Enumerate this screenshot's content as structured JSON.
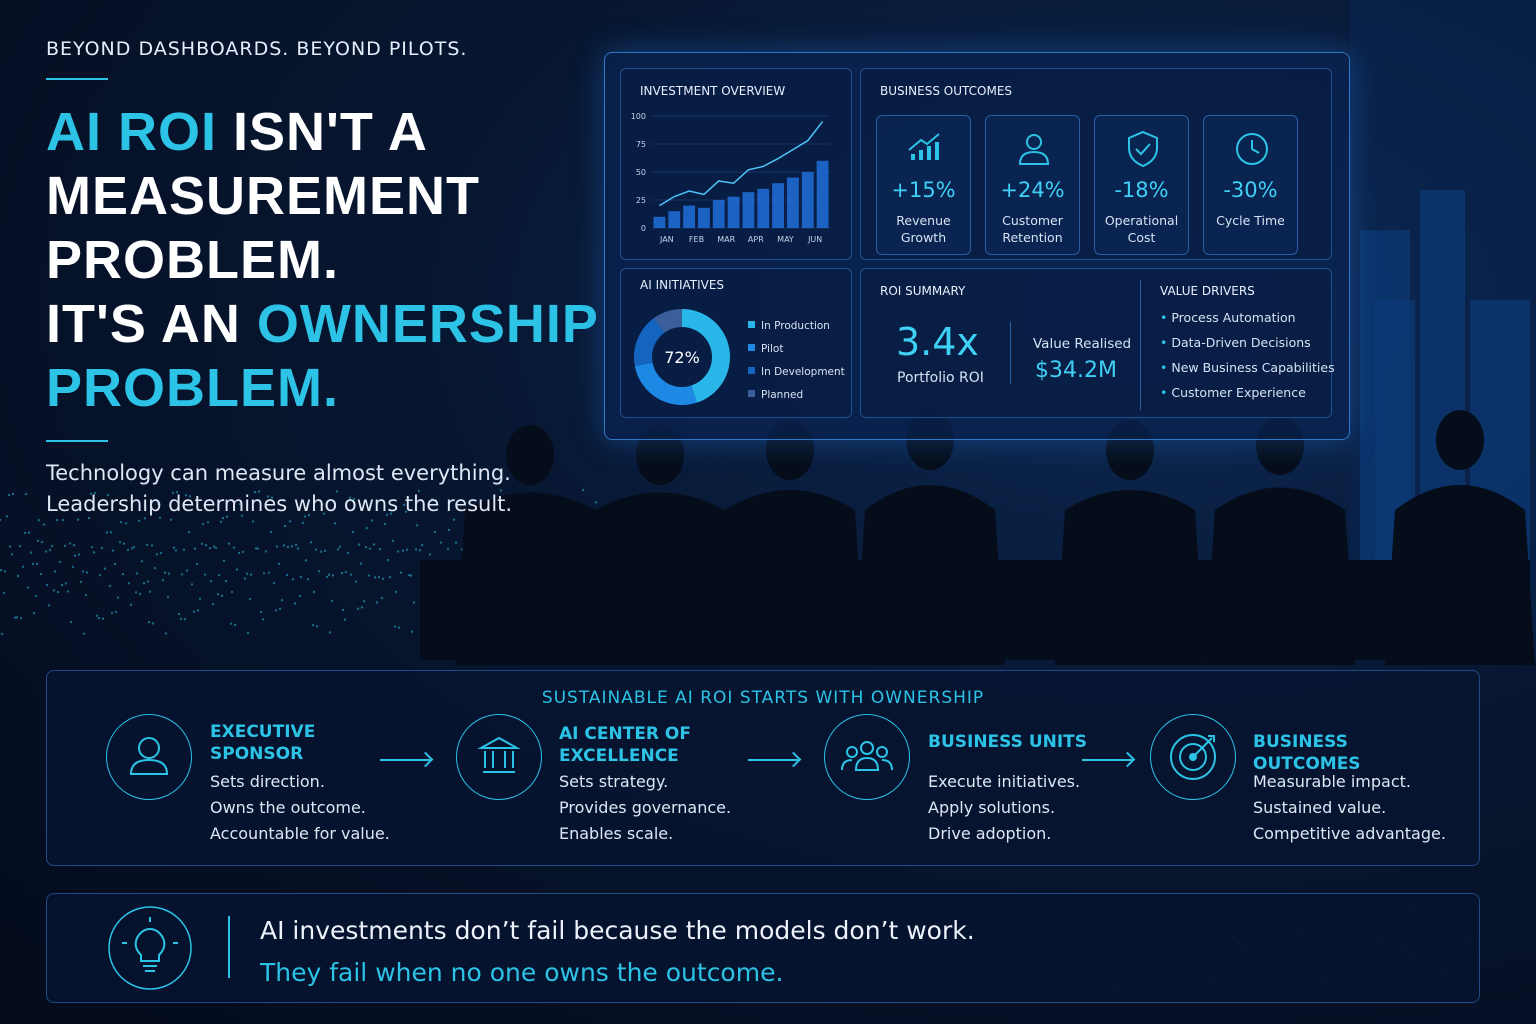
{
  "hero": {
    "kicker": "BEYOND DASHBOARDS. BEYOND PILOTS.",
    "headline": [
      "AI ROI",
      "ISN'T A MEASUREMENT PROBLEM.",
      "IT'S AN",
      "OWNERSHIP PROBLEM."
    ],
    "subtitle": [
      "Technology can measure almost everything.",
      "Leadership determines who owns the result."
    ]
  },
  "dashboard": {
    "investment": {
      "title": "INVESTMENT OVERVIEW",
      "chart": {
        "type": "bar_line",
        "categories": [
          "JAN",
          null,
          "FEB",
          null,
          "MAR",
          null,
          "APR",
          null,
          "MAY",
          null,
          "JUN",
          null
        ],
        "line": {
          "color": "#4fc3f7",
          "values": [
            20,
            28,
            33,
            30,
            42,
            40,
            52,
            55,
            62,
            70,
            78,
            95
          ]
        },
        "bars": {
          "color": "#1e6fd9",
          "values": [
            10,
            15,
            20,
            18,
            25,
            28,
            32,
            35,
            40,
            45,
            50,
            60
          ]
        },
        "ylim": [
          0,
          100
        ],
        "yticks": [
          0,
          25,
          50,
          75,
          100
        ],
        "grid": true
      }
    },
    "outcomes": {
      "title": "BUSINESS OUTCOMES",
      "items": [
        {
          "value": "+15%",
          "label": "Revenue Growth"
        },
        {
          "value": "+24%",
          "label": "Customer Retention"
        },
        {
          "value": "-18%",
          "label": "Operational Cost"
        },
        {
          "value": "-30%",
          "label": "Cycle Time"
        }
      ]
    },
    "initiatives": {
      "title": "AI INITIATIVES",
      "chart": {
        "type": "donut",
        "center_label": "72%",
        "categories": [
          "In Production",
          "Pilot",
          "In Development",
          "Planned"
        ],
        "values": [
          45,
          27,
          18,
          10
        ],
        "colors": [
          "#29b6e8",
          "#1e88e5",
          "#1565c0",
          "#3a5f9a"
        ]
      }
    },
    "roi": {
      "title": "ROI SUMMARY",
      "multiple": "3.4x",
      "multiple_label": "Portfolio ROI",
      "value_label": "Value Realised",
      "value": "$34.2M"
    },
    "drivers": {
      "title": "VALUE DRIVERS",
      "items": [
        "Process Automation",
        "Data-Driven Decisions",
        "New Business Capabilities",
        "Customer Experience"
      ]
    }
  },
  "ownership": {
    "title": "SUSTAINABLE AI ROI STARTS WITH OWNERSHIP",
    "steps": [
      {
        "title": "EXECUTIVE SPONSOR",
        "lines": [
          "Sets direction.",
          "Owns the outcome.",
          "Accountable for value."
        ]
      },
      {
        "title": "AI CENTER OF EXCELLENCE",
        "lines": [
          "Sets strategy.",
          "Provides governance.",
          "Enables scale."
        ]
      },
      {
        "title": "BUSINESS UNITS",
        "lines": [
          "Execute initiatives.",
          "Apply solutions.",
          "Drive adoption."
        ]
      },
      {
        "title": "BUSINESS OUTCOMES",
        "lines": [
          "Measurable impact.",
          "Sustained value.",
          "Competitive advantage."
        ]
      }
    ]
  },
  "quote": {
    "lines": [
      "AI investments don’t fail because the models don’t work.",
      "They fail when no one owns the outcome."
    ]
  }
}
